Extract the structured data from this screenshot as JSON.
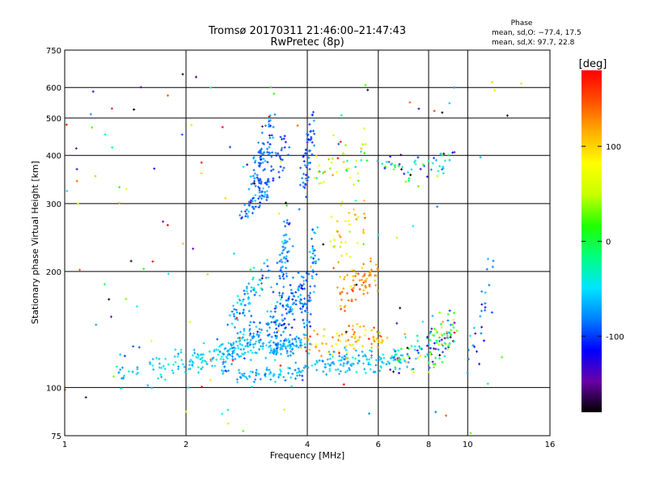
{
  "chart_data": {
    "type": "scatter",
    "title": "Tromsø 20170311 21:46:00–21:47:43",
    "subtitle": "RwPretec (8p)",
    "xlabel": "Frequency [MHz]",
    "ylabel": "Stationary phase Virtual Height [km]",
    "x_scale": "log",
    "y_scale": "log",
    "xlim": [
      1,
      16
    ],
    "ylim": [
      75,
      750
    ],
    "x_ticks": [
      1,
      2,
      4,
      6,
      8,
      10,
      16
    ],
    "y_ticks": [
      75,
      100,
      200,
      300,
      400,
      500,
      600,
      750
    ],
    "grid": true,
    "phase_box": {
      "title": "Phase",
      "line1": "mean, sd,O: −77.4, 17.5",
      "line2": "mean, sd,X:  97.7, 22.8"
    },
    "colorbar": {
      "label": "[deg]",
      "range": [
        -180,
        180
      ],
      "ticks": [
        100,
        0,
        -100
      ],
      "colors": [
        "#000000",
        "#6a00a8",
        "#0000ff",
        "#0080ff",
        "#00e5ff",
        "#00ff80",
        "#20ff00",
        "#c8ff00",
        "#ffff00",
        "#ffb000",
        "#ff5000",
        "#ff0000"
      ]
    },
    "traces": [
      {
        "kind": "line",
        "f0": 1.35,
        "f1": 1.98,
        "h0": 108,
        "h1": 115,
        "n": 50,
        "spread_h": 0.04,
        "phase": -60,
        "phase_sd": 12
      },
      {
        "kind": "line",
        "f0": 1.98,
        "f1": 3.25,
        "h0": 115,
        "h1": 133,
        "n": 120,
        "spread_h": 0.035,
        "phase": -55,
        "phase_sd": 12
      },
      {
        "kind": "line",
        "f0": 2.45,
        "f1": 3.3,
        "h0": 118,
        "h1": 150,
        "n": 80,
        "spread_h": 0.05,
        "phase": -75,
        "phase_sd": 15
      },
      {
        "kind": "line",
        "f0": 2.6,
        "f1": 3.2,
        "h0": 150,
        "h1": 200,
        "n": 70,
        "spread_h": 0.05,
        "phase": -65,
        "phase_sd": 18
      },
      {
        "kind": "line",
        "f0": 2.75,
        "f1": 3.2,
        "h0": 280,
        "h1": 330,
        "n": 45,
        "spread_h": 0.03,
        "phase": -85,
        "phase_sd": 15
      },
      {
        "kind": "line",
        "f0": 2.9,
        "f1": 3.3,
        "h0": 340,
        "h1": 480,
        "n": 70,
        "spread_h": 0.07,
        "phase": -90,
        "phase_sd": 15
      },
      {
        "kind": "line",
        "f0": 3.0,
        "f1": 3.55,
        "h0": 330,
        "h1": 430,
        "n": 45,
        "spread_h": 0.07,
        "phase": -95,
        "phase_sd": 12
      },
      {
        "kind": "line",
        "f0": 3.2,
        "f1": 3.95,
        "h0": 125,
        "h1": 133,
        "n": 90,
        "spread_h": 0.03,
        "phase": -70,
        "phase_sd": 15
      },
      {
        "kind": "line",
        "f0": 3.3,
        "f1": 4.0,
        "h0": 140,
        "h1": 185,
        "n": 110,
        "spread_h": 0.08,
        "phase": -85,
        "phase_sd": 18
      },
      {
        "kind": "line",
        "f0": 3.4,
        "f1": 3.6,
        "h0": 185,
        "h1": 270,
        "n": 55,
        "spread_h": 0.08,
        "phase": -80,
        "phase_sd": 15
      },
      {
        "kind": "line",
        "f0": 2.7,
        "f1": 3.9,
        "h0": 106,
        "h1": 110,
        "n": 70,
        "spread_h": 0.03,
        "phase": -65,
        "phase_sd": 15
      },
      {
        "kind": "line",
        "f0": 3.9,
        "f1": 4.15,
        "h0": 330,
        "h1": 500,
        "n": 55,
        "spread_h": 0.08,
        "phase": -95,
        "phase_sd": 15
      },
      {
        "kind": "line",
        "f0": 3.95,
        "f1": 4.2,
        "h0": 140,
        "h1": 250,
        "n": 55,
        "spread_h": 0.07,
        "phase": -80,
        "phase_sd": 18
      },
      {
        "kind": "line",
        "f0": 4.0,
        "f1": 7.0,
        "h0": 115,
        "h1": 118,
        "n": 130,
        "spread_h": 0.035,
        "phase": -60,
        "phase_sd": 15
      },
      {
        "kind": "line",
        "f0": 3.9,
        "f1": 6.3,
        "h0": 128,
        "h1": 135,
        "n": 80,
        "spread_h": 0.04,
        "phase": 115,
        "phase_sd": 20
      },
      {
        "kind": "line",
        "f0": 4.8,
        "f1": 6.0,
        "h0": 170,
        "h1": 200,
        "n": 70,
        "spread_h": 0.06,
        "phase": 125,
        "phase_sd": 15
      },
      {
        "kind": "line",
        "f0": 4.5,
        "f1": 5.6,
        "h0": 220,
        "h1": 280,
        "n": 35,
        "spread_h": 0.08,
        "phase": 100,
        "phase_sd": 30
      },
      {
        "kind": "line",
        "f0": 4.1,
        "f1": 5.6,
        "h0": 355,
        "h1": 400,
        "n": 40,
        "spread_h": 0.06,
        "phase": 60,
        "phase_sd": 60
      },
      {
        "kind": "line",
        "f0": 6.0,
        "f1": 9.2,
        "h0": 370,
        "h1": 390,
        "n": 50,
        "spread_h": 0.04,
        "phase": -60,
        "phase_sd": 60
      },
      {
        "kind": "line",
        "f0": 6.5,
        "f1": 9.3,
        "h0": 118,
        "h1": 135,
        "n": 80,
        "spread_h": 0.06,
        "phase": -40,
        "phase_sd": 90
      },
      {
        "kind": "line",
        "f0": 7.9,
        "f1": 9.2,
        "h0": 120,
        "h1": 150,
        "n": 45,
        "spread_h": 0.08,
        "phase": -20,
        "phase_sd": 90
      },
      {
        "kind": "line",
        "f0": 10.2,
        "f1": 11.5,
        "h0": 120,
        "h1": 190,
        "n": 25,
        "spread_h": 0.08,
        "phase": -95,
        "phase_sd": 25
      },
      {
        "kind": "cloud",
        "f0": 1.0,
        "f1": 14.0,
        "h0": 76,
        "h1": 650,
        "n": 140,
        "phase": 0,
        "phase_sd": 130
      }
    ]
  }
}
